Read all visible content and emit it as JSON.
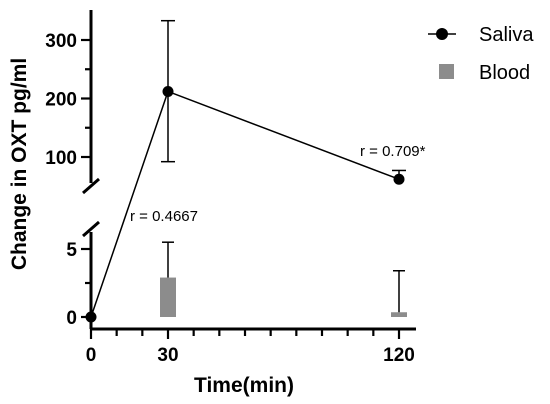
{
  "chart_data": {
    "type": "line",
    "title": "",
    "xlabel": "Time(min)",
    "ylabel": "Change in OXT pg/ml",
    "x_ticks": [
      0,
      30,
      120
    ],
    "x_minor_ticks": [
      10,
      20,
      40,
      50,
      60,
      70,
      80,
      90,
      100,
      110
    ],
    "xlim": [
      0,
      120
    ],
    "y_axis_broken": true,
    "y_ticks_lower": [
      0,
      5
    ],
    "y_ticks_upper": [
      100,
      200,
      300
    ],
    "ylim_lower": [
      0,
      6
    ],
    "ylim_upper": [
      50,
      350
    ],
    "grid": false,
    "legend_position": "top-right",
    "series": [
      {
        "name": "Saliva",
        "type": "line",
        "marker": "circle",
        "color": "#000000",
        "x": [
          0,
          30,
          120
        ],
        "y": [
          0,
          212,
          62
        ],
        "error_upper": [
          0,
          333,
          77
        ],
        "error_lower": [
          0,
          92,
          62
        ]
      },
      {
        "name": "Blood",
        "type": "bar",
        "color": "#8c8c8c",
        "x": [
          30,
          120
        ],
        "y": [
          2.9,
          0.35
        ],
        "error_upper": [
          5.5,
          3.4
        ]
      }
    ],
    "annotations": [
      {
        "text": "r = 0.4667",
        "x": 20,
        "y": 5.8
      },
      {
        "text": "r = 0.709*",
        "x": 110,
        "y": 105
      }
    ]
  }
}
